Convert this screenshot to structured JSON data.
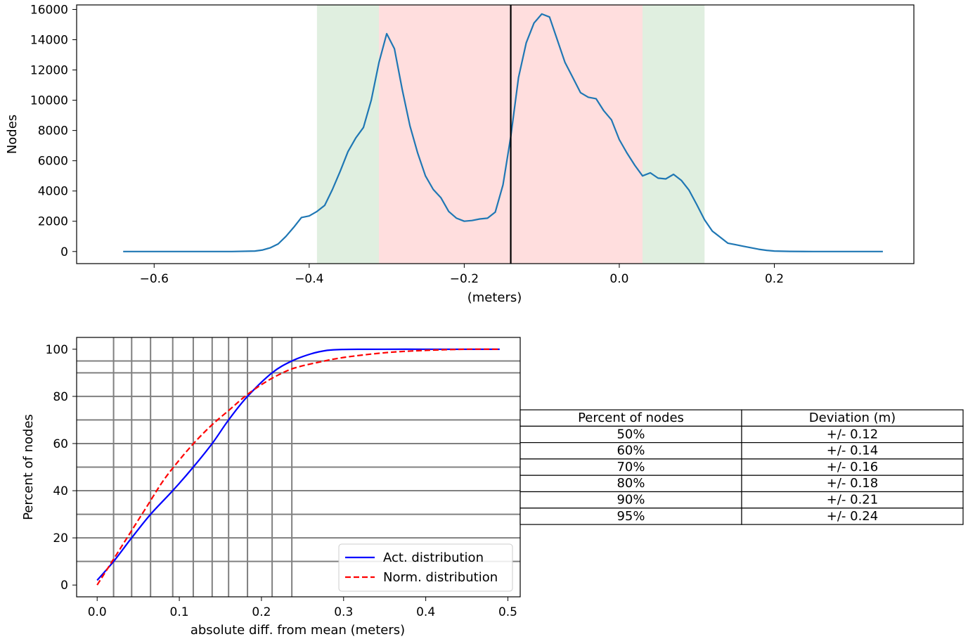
{
  "chart_data": [
    {
      "type": "line",
      "xlabel": "(meters)",
      "ylabel": "Nodes",
      "xlim": [
        -0.7,
        0.38
      ],
      "ylim": [
        -800,
        16300
      ],
      "xticks": [
        -0.6,
        -0.4,
        -0.2,
        0.0,
        0.2
      ],
      "xtick_labels": [
        "−0.6",
        "−0.4",
        "−0.2",
        "0.0",
        "0.2"
      ],
      "yticks": [
        0,
        2000,
        4000,
        6000,
        8000,
        10000,
        12000,
        14000,
        16000
      ],
      "ytick_labels": [
        "0",
        "2000",
        "4000",
        "6000",
        "8000",
        "10000",
        "12000",
        "14000",
        "16000"
      ],
      "grid": false,
      "shaded_bands": [
        {
          "x0": -0.39,
          "x1": -0.31,
          "color": "#e0efe0"
        },
        {
          "x0": -0.31,
          "x1": 0.03,
          "color": "#ffdede"
        },
        {
          "x0": 0.03,
          "x1": 0.11,
          "color": "#e0efe0"
        }
      ],
      "vertical_line": {
        "x": -0.14,
        "color": "#000000"
      },
      "series": [
        {
          "color": "#1f77b4",
          "x": [
            -0.64,
            -0.6,
            -0.55,
            -0.5,
            -0.47,
            -0.46,
            -0.45,
            -0.44,
            -0.43,
            -0.42,
            -0.41,
            -0.4,
            -0.39,
            -0.38,
            -0.37,
            -0.36,
            -0.35,
            -0.34,
            -0.33,
            -0.32,
            -0.31,
            -0.3,
            -0.29,
            -0.28,
            -0.27,
            -0.26,
            -0.25,
            -0.24,
            -0.23,
            -0.22,
            -0.21,
            -0.2,
            -0.19,
            -0.18,
            -0.17,
            -0.16,
            -0.15,
            -0.14,
            -0.13,
            -0.12,
            -0.11,
            -0.1,
            -0.09,
            -0.08,
            -0.07,
            -0.06,
            -0.05,
            -0.04,
            -0.03,
            -0.02,
            -0.01,
            0.0,
            0.01,
            0.02,
            0.03,
            0.04,
            0.05,
            0.06,
            0.07,
            0.08,
            0.09,
            0.1,
            0.11,
            0.12,
            0.13,
            0.14,
            0.15,
            0.16,
            0.17,
            0.18,
            0.19,
            0.2,
            0.22,
            0.25,
            0.3,
            0.34
          ],
          "y": [
            0,
            0,
            0,
            0,
            30,
            100,
            250,
            500,
            1000,
            1600,
            2250,
            2350,
            2650,
            3050,
            4100,
            5300,
            6600,
            7500,
            8200,
            10000,
            12500,
            14400,
            13400,
            10700,
            8300,
            6500,
            5000,
            4100,
            3550,
            2650,
            2200,
            2000,
            2050,
            2150,
            2200,
            2600,
            4400,
            7600,
            11500,
            13800,
            15100,
            15700,
            15500,
            14000,
            12500,
            11500,
            10500,
            10200,
            10100,
            9300,
            8700,
            7400,
            6500,
            5700,
            5000,
            5200,
            4850,
            4800,
            5100,
            4700,
            4050,
            3100,
            2100,
            1350,
            950,
            550,
            450,
            350,
            250,
            150,
            80,
            30,
            10,
            0,
            0,
            0
          ]
        }
      ]
    },
    {
      "type": "line",
      "xlabel": "absolute diff. from mean (meters)",
      "ylabel": "Percent of nodes",
      "xlim": [
        -0.025,
        0.515
      ],
      "ylim": [
        -5,
        105
      ],
      "xticks": [
        0.0,
        0.1,
        0.2,
        0.3,
        0.4,
        0.5
      ],
      "xtick_labels": [
        "0.0",
        "0.1",
        "0.2",
        "0.3",
        "0.4",
        "0.5"
      ],
      "yticks": [
        0,
        20,
        40,
        60,
        80,
        100
      ],
      "ytick_labels": [
        "0",
        "20",
        "40",
        "60",
        "80",
        "100"
      ],
      "grid": true,
      "grid_x": [
        0.02,
        0.042,
        0.065,
        0.092,
        0.117,
        0.14,
        0.16,
        0.183,
        0.213,
        0.237
      ],
      "grid_y": [
        10,
        20,
        30,
        40,
        50,
        60,
        70,
        80,
        90,
        95
      ],
      "legend_position": "lower right",
      "series": [
        {
          "name": "Act. distribution",
          "color": "#0000ff",
          "dash": "solid",
          "x": [
            0.0,
            0.02,
            0.042,
            0.065,
            0.092,
            0.117,
            0.14,
            0.16,
            0.183,
            0.213,
            0.237,
            0.26,
            0.28,
            0.3,
            0.35,
            0.4,
            0.45,
            0.49
          ],
          "y": [
            2,
            10,
            20,
            30,
            40,
            50,
            60,
            70,
            80,
            90,
            95,
            98,
            99.5,
            99.9,
            100,
            100,
            100,
            100
          ]
        },
        {
          "name": "Norm. distribution",
          "color": "#ff0000",
          "dash": "dashed",
          "x": [
            0.0,
            0.02,
            0.04,
            0.06,
            0.08,
            0.1,
            0.12,
            0.14,
            0.16,
            0.18,
            0.2,
            0.22,
            0.24,
            0.27,
            0.3,
            0.35,
            0.4,
            0.45,
            0.49
          ],
          "y": [
            0,
            11,
            22,
            33,
            44,
            53,
            61,
            68,
            74,
            80,
            85,
            89,
            92,
            94.5,
            96.5,
            98.5,
            99.5,
            100,
            100
          ]
        }
      ]
    },
    {
      "type": "table",
      "columns": [
        "Percent of nodes",
        "Deviation (m)"
      ],
      "rows": [
        [
          "50%",
          "+/- 0.12"
        ],
        [
          "60%",
          "+/- 0.14"
        ],
        [
          "70%",
          "+/- 0.16"
        ],
        [
          "80%",
          "+/- 0.18"
        ],
        [
          "90%",
          "+/- 0.21"
        ],
        [
          "95%",
          "+/- 0.24"
        ]
      ]
    }
  ]
}
